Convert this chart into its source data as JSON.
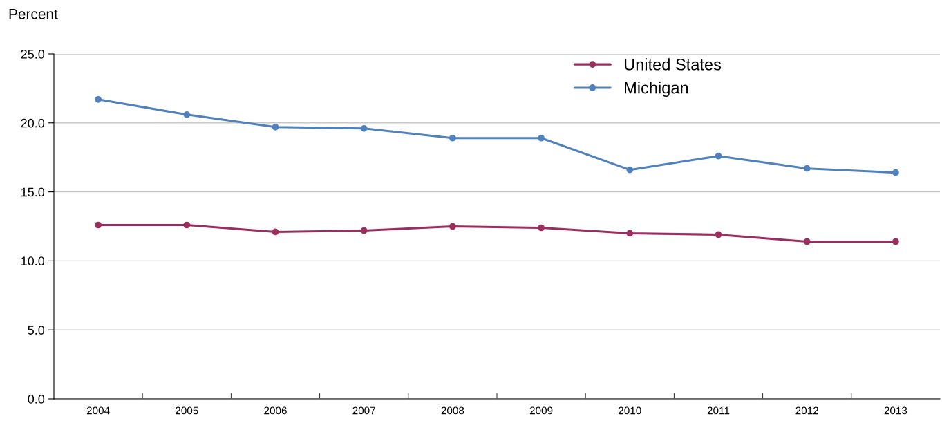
{
  "chart_data": {
    "type": "line",
    "ylabel": "Percent",
    "categories": [
      "2004",
      "2005",
      "2006",
      "2007",
      "2008",
      "2009",
      "2010",
      "2011",
      "2012",
      "2013"
    ],
    "series": [
      {
        "name": "United States",
        "color": "#9b2d5f",
        "values": [
          12.6,
          12.6,
          12.1,
          12.2,
          12.5,
          12.4,
          12.0,
          11.9,
          11.4,
          11.4
        ]
      },
      {
        "name": "Michigan",
        "color": "#4f81bd",
        "values": [
          21.7,
          20.6,
          19.7,
          19.6,
          18.9,
          18.9,
          16.6,
          17.6,
          16.7,
          16.4
        ]
      }
    ],
    "ylim": [
      0,
      25
    ],
    "yticks": [
      {
        "value": 0,
        "label": "0.0"
      },
      {
        "value": 5,
        "label": "5.0"
      },
      {
        "value": 10,
        "label": "10.0"
      },
      {
        "value": 15,
        "label": "15.0"
      },
      {
        "value": 20,
        "label": "20.0"
      },
      {
        "value": 25,
        "label": "25.0"
      }
    ],
    "grid": "y",
    "legend": "top right",
    "marker": "circle",
    "line_style": "solid"
  }
}
